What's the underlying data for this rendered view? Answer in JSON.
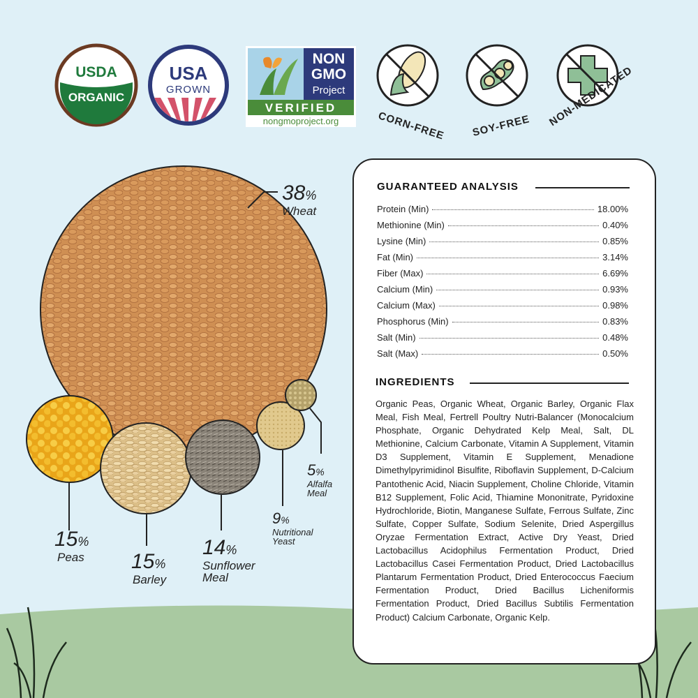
{
  "badges": {
    "usda": {
      "top": "USDA",
      "bottom": "ORGANIC"
    },
    "usa": {
      "top": "USA",
      "bottom": "GROWN"
    },
    "nongmo": {
      "line1": "NON",
      "line2": "GMO",
      "line3": "Project",
      "verified": "VERIFIED",
      "url": "nongmoproject.org"
    },
    "corn_free": {
      "label": "CORN-FREE"
    },
    "soy_free": {
      "label": "SOY-FREE"
    },
    "non_medicated": {
      "label": "NON-MEDICATED"
    }
  },
  "ingredient_shares": [
    {
      "percent": "38",
      "symbol": "%",
      "name": "Wheat"
    },
    {
      "percent": "15",
      "symbol": "%",
      "name": "Peas"
    },
    {
      "percent": "15",
      "symbol": "%",
      "name": "Barley"
    },
    {
      "percent": "14",
      "symbol": "%",
      "name1": "Sunflower",
      "name2": "Meal"
    },
    {
      "percent": "9",
      "symbol": "%",
      "name1": "Nutritional",
      "name2": "Yeast"
    },
    {
      "percent": "5",
      "symbol": "%",
      "name1": "Alfalfa",
      "name2": "Meal"
    }
  ],
  "analysis": {
    "title": "GUARANTEED ANALYSIS",
    "rows": [
      {
        "label": "Protein (Min)",
        "value": "18.00%"
      },
      {
        "label": "Methionine (Min)",
        "value": "0.40%"
      },
      {
        "label": "Lysine (Min)",
        "value": "0.85%"
      },
      {
        "label": "Fat (Min)",
        "value": "3.14%"
      },
      {
        "label": "Fiber (Max)",
        "value": "6.69%"
      },
      {
        "label": "Calcium (Min)",
        "value": "0.93%"
      },
      {
        "label": "Calcium (Max)",
        "value": "0.98%"
      },
      {
        "label": "Phosphorus (Min)",
        "value": "0.83%"
      },
      {
        "label": "Salt (Min)",
        "value": "0.48%"
      },
      {
        "label": "Salt (Max)",
        "value": "0.50%"
      }
    ]
  },
  "ingredients": {
    "title": "INGREDIENTS",
    "text": "Organic Peas, Organic Wheat, Organic Barley, Organic Flax Meal, Fish Meal, Fertrell Poultry Nutri-Balancer (Monocalcium Phosphate, Organic Dehydrated Kelp Meal, Salt, DL Methionine, Calcium Carbonate, Vitamin A Supplement, Vitamin D3 Supplement, Vitamin E Supplement, Menadione Dimethylpyrimidinol Bisulfite, Riboflavin Supplement, D-Calcium Pantothenic Acid, Niacin Supplement, Choline Chloride, Vitamin B12 Supplement, Folic Acid, Thiamine Mononitrate, Pyridoxine Hydrochloride, Biotin, Manganese Sulfate, Ferrous Sulfate, Zinc Sulfate, Copper Sulfate, Sodium Selenite, Dried Aspergillus Oryzae Fermentation Extract, Active Dry Yeast, Dried Lactobacillus Acidophilus Fermentation Product, Dried Lactobacillus Casei Fermentation Product, Dried Lactobacillus Plantarum Fermentation Product, Dried Enterococcus Faecium Fermentation Product, Dried Bacillus Licheniformis Fermentation Product, Dried Bacillus Subtilis Fermentation Product) Calcium Carbonate, Organic Kelp."
  },
  "colors": {
    "background": "#dff0f7",
    "grass": "#a9c9a1",
    "usda_green": "#1f7a3c",
    "usa_navy": "#2d3a7b",
    "usa_red": "#d3526a",
    "nongmo_green": "#4a8c3a",
    "icon_green": "#8fbf97"
  }
}
